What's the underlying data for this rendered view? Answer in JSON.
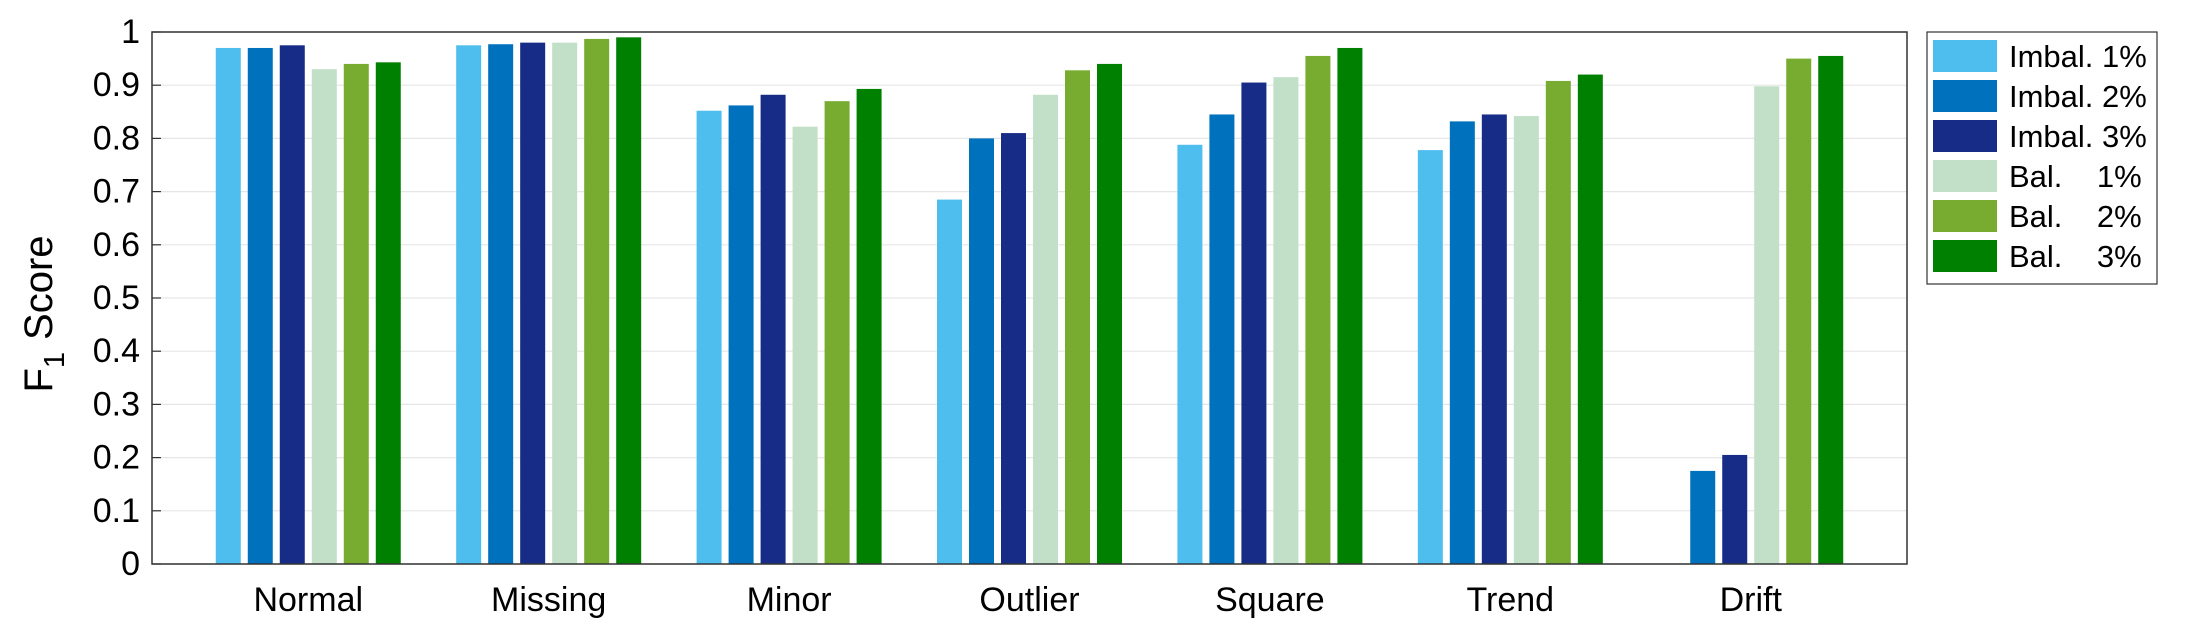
{
  "chart_data": {
    "type": "bar",
    "categories": [
      "Normal",
      "Missing",
      "Minor",
      "Outlier",
      "Square",
      "Trend",
      "Drift"
    ],
    "ylabel": {
      "main": "F",
      "sub": "1",
      "rest": "Score"
    },
    "ylim": [
      0,
      1
    ],
    "yticks": [
      "0",
      "0.1",
      "0.2",
      "0.3",
      "0.4",
      "0.5",
      "0.6",
      "0.7",
      "0.8",
      "0.9",
      "1"
    ],
    "grid": true,
    "legend_position": "outside-right-top",
    "series": [
      {
        "name": "Imbal. 1%",
        "color": "#4dbeee",
        "values": [
          0.97,
          0.975,
          0.852,
          0.685,
          0.788,
          0.778,
          0.0
        ]
      },
      {
        "name": "Imbal. 2%",
        "color": "#0072bd",
        "values": [
          0.97,
          0.977,
          0.862,
          0.8,
          0.845,
          0.832,
          0.175
        ]
      },
      {
        "name": "Imbal. 3%",
        "color": "#162c87",
        "values": [
          0.975,
          0.98,
          0.882,
          0.81,
          0.905,
          0.845,
          0.205
        ]
      },
      {
        "name": "Bal.    1%",
        "color": "#c2dfc8",
        "values": [
          0.93,
          0.98,
          0.822,
          0.882,
          0.915,
          0.842,
          0.898
        ]
      },
      {
        "name": "Bal.    2%",
        "color": "#77ac30",
        "values": [
          0.94,
          0.987,
          0.87,
          0.928,
          0.955,
          0.908,
          0.95
        ]
      },
      {
        "name": "Bal.    3%",
        "color": "#008000",
        "values": [
          0.943,
          0.99,
          0.893,
          0.94,
          0.97,
          0.92,
          0.955
        ]
      }
    ]
  }
}
